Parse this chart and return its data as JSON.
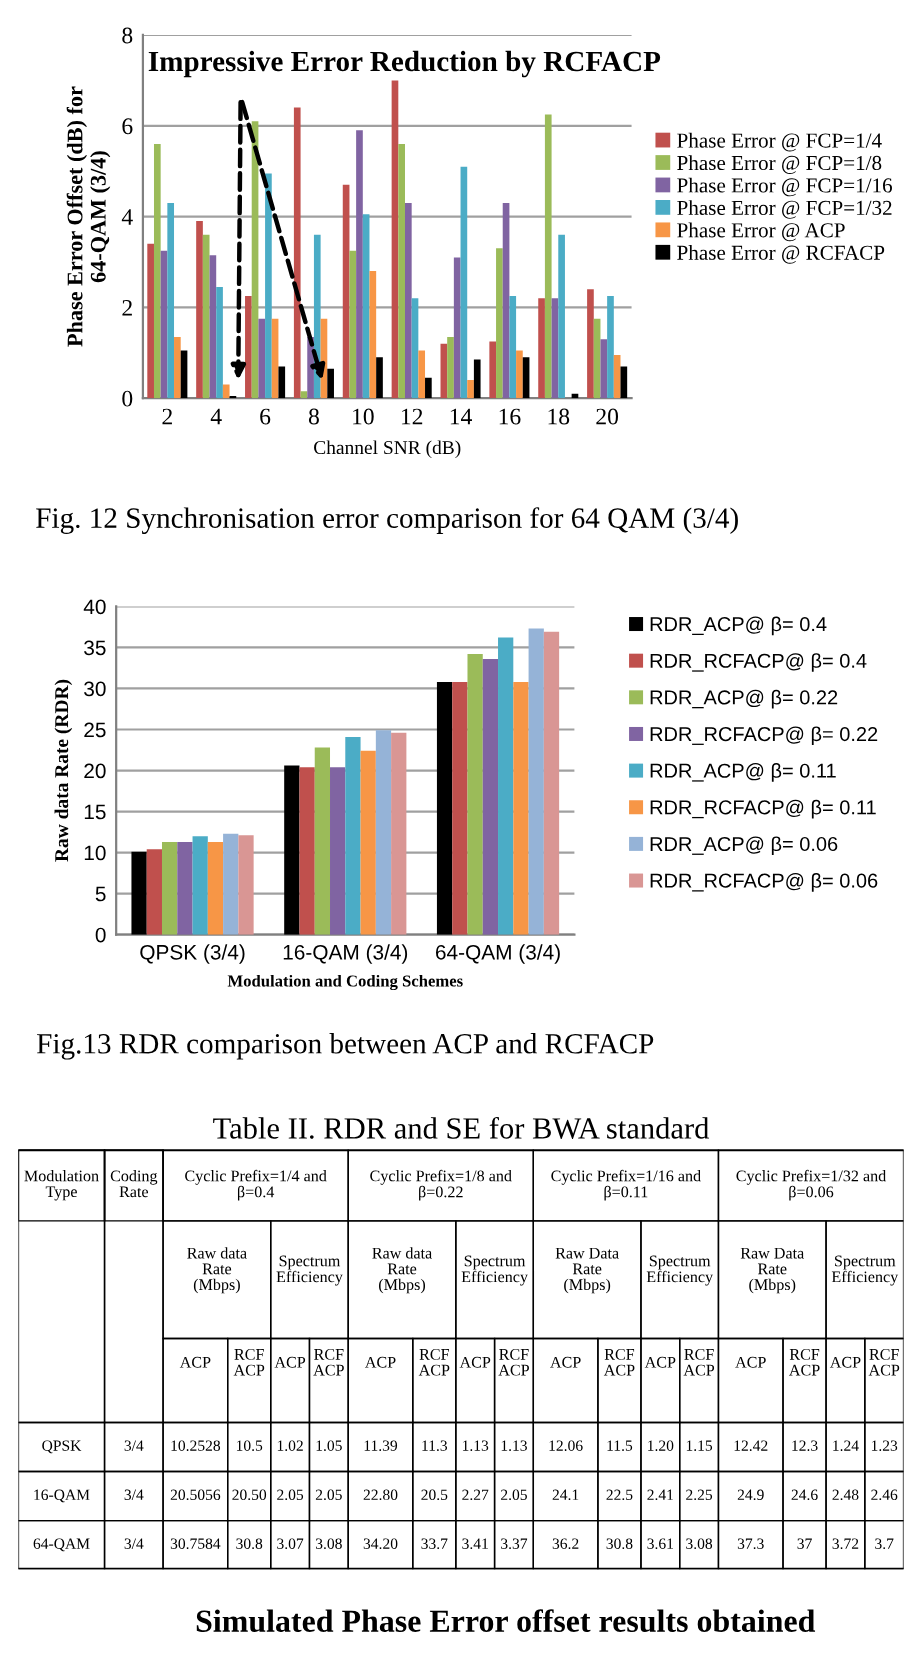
{
  "chart_data": [
    {
      "type": "bar",
      "xlabel": "Channel SNR (dB)",
      "ylabel": "Phase Error Offset (dB) for\n64-QAM (3/4)",
      "categories": [
        "2",
        "4",
        "6",
        "8",
        "10",
        "12",
        "14",
        "16",
        "18",
        "20"
      ],
      "series": [
        {
          "name": "Phase Error @ FCP=1/4",
          "color": "#c0504d",
          "values": [
            3.4,
            3.9,
            2.25,
            6.4,
            4.7,
            7.0,
            1.2,
            1.25,
            2.2,
            2.4
          ]
        },
        {
          "name": "Phase Error @ FCP=1/8",
          "color": "#9bbb59",
          "values": [
            5.6,
            3.6,
            6.1,
            0.15,
            3.25,
            5.6,
            1.35,
            3.3,
            6.25,
            1.75
          ]
        },
        {
          "name": "Phase Error @ FCP=1/16",
          "color": "#8064a2",
          "values": [
            3.25,
            3.15,
            1.75,
            1.35,
            5.9,
            4.3,
            3.1,
            4.3,
            2.2,
            1.3
          ]
        },
        {
          "name": "Phase Error @ FCP=1/32",
          "color": "#4bacc6",
          "values": [
            4.3,
            2.45,
            4.95,
            3.6,
            4.05,
            2.2,
            5.1,
            2.25,
            3.6,
            2.25
          ]
        },
        {
          "name": "Phase Error @ ACP",
          "color": "#f79646",
          "values": [
            1.35,
            0.3,
            1.75,
            1.75,
            2.8,
            1.05,
            0.4,
            1.05,
            0.0,
            0.95
          ]
        },
        {
          "name": "Phase Error @ RCFACP",
          "color": "#000000",
          "values": [
            1.05,
            0.05,
            0.7,
            0.65,
            0.9,
            0.45,
            0.85,
            0.9,
            0.1,
            0.7
          ]
        }
      ],
      "ylim": [
        0,
        8
      ],
      "yticks": [
        0,
        2,
        4,
        6,
        8
      ],
      "grid": "y",
      "legend": "right",
      "annotations": [
        "Impressive Error Reduction by RCFACP",
        "Fig. 12 Synchronisation error comparison for 64 QAM (3/4)"
      ]
    },
    {
      "type": "bar",
      "xlabel": "Modulation and Coding Schemes",
      "ylabel": "Raw data Rate (RDR)",
      "categories": [
        "QPSK (3/4)",
        "16-QAM (3/4)",
        "64-QAM (3/4)"
      ],
      "series": [
        {
          "name": "RDR_ACP@ β= 0.4",
          "color": "#000000",
          "values": [
            10.1,
            20.6,
            30.8
          ]
        },
        {
          "name": "RDR_RCFACP@ β= 0.4",
          "color": "#c0504d",
          "values": [
            10.4,
            20.4,
            30.8
          ]
        },
        {
          "name": "RDR_ACP@ β= 0.22",
          "color": "#9bbb59",
          "values": [
            11.3,
            22.8,
            34.2
          ]
        },
        {
          "name": "RDR_RCFACP@ β= 0.22",
          "color": "#8064a2",
          "values": [
            11.3,
            20.4,
            33.6
          ]
        },
        {
          "name": "RDR_ACP@ β= 0.11",
          "color": "#4bacc6",
          "values": [
            12.0,
            24.1,
            36.2
          ]
        },
        {
          "name": "RDR_RCFACP@ β= 0.11",
          "color": "#f79646",
          "values": [
            11.3,
            22.4,
            30.8
          ]
        },
        {
          "name": "RDR_ACP@ β= 0.06",
          "color": "#95b3d7",
          "values": [
            12.3,
            24.9,
            37.3
          ]
        },
        {
          "name": "RDR_RCFACP@ β= 0.06",
          "color": "#d99694",
          "values": [
            12.1,
            24.6,
            36.9
          ]
        }
      ],
      "ylim": [
        0,
        40
      ],
      "yticks": [
        0,
        5,
        10,
        15,
        20,
        25,
        30,
        35,
        40
      ],
      "grid": "y",
      "legend": "right",
      "annotations": [
        "Fig.13 RDR comparison between ACP and RCFACP"
      ]
    },
    {
      "type": "other",
      "title": "Table II. RDR and SE for BWA standard",
      "annotations": [
        "Modulation\nType",
        "Coding\nRate",
        "Cyclic Prefix=1/4 and\nβ=0.4",
        "Cyclic Prefix=1/8 and\nβ=0.22",
        "Cyclic Prefix=1/16 and\nβ=0.11",
        "Cyclic Prefix=1/32 and\nβ=0.06",
        "Raw data\nRate\n(Mbps)",
        "Spectrum\nEfficiency",
        "Raw data\nRate\n(Mbps)",
        "Spectrum\nEfficiency",
        "Raw Data\nRate\n(Mbps)",
        "Spectrum\nEfficiency",
        "Raw Data\nRate\n(Mbps)",
        "Spectrum\nEfficiency",
        "ACP",
        "RCF\nACP",
        "ACP",
        "RCF\nACP",
        "ACP",
        "RCF\nACP",
        "ACP",
        "RCF\nACP",
        "ACP",
        "RCF\nACP",
        "ACP",
        "RCF\nACP",
        "ACP",
        "RCF\nACP",
        "ACP",
        "RCF\nACP",
        "QPSK",
        "3/4",
        "10.2528",
        "10.5",
        "1.02",
        "1.05",
        "11.39",
        "11.3",
        "1.13",
        "1.13",
        "12.06",
        "11.5",
        "1.20",
        "1.15",
        "12.42",
        "12.3",
        "1.24",
        "1.23",
        "16-QAM",
        "3/4",
        "20.5056",
        "20.50",
        "2.05",
        "2.05",
        "22.80",
        "20.5",
        "2.27",
        "2.05",
        "24.1",
        "22.5",
        "2.41",
        "2.25",
        "24.9",
        "24.6",
        "2.48",
        "2.46",
        "64-QAM",
        "3/4",
        "30.7584",
        "30.8",
        "3.07",
        "3.08",
        "34.20",
        "33.7",
        "3.41",
        "3.37",
        "36.2",
        "30.8",
        "3.61",
        "3.08",
        "37.3",
        "37",
        "3.72",
        "3.7",
        "Simulated Phase Error offset results obtained"
      ]
    }
  ]
}
